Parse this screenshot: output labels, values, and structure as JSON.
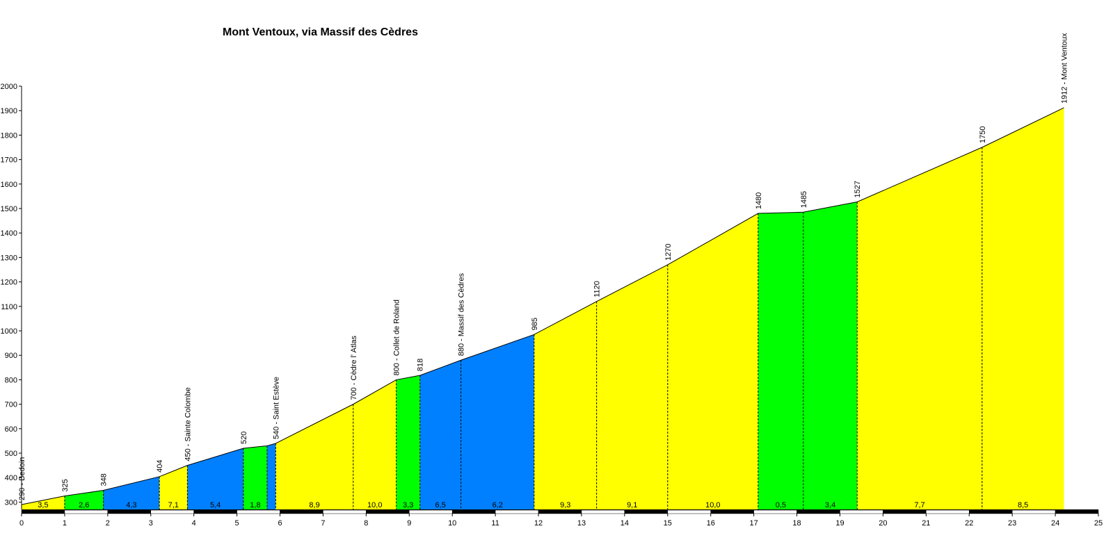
{
  "chart_data": {
    "type": "area",
    "title": "Mont Ventoux, via Massif des Cèdres",
    "xlabel": "",
    "ylabel": "",
    "xlim": [
      0,
      25
    ],
    "ylim": [
      270,
      2000
    ],
    "x_ticks": [
      0,
      1,
      2,
      3,
      4,
      5,
      6,
      7,
      8,
      9,
      10,
      11,
      12,
      13,
      14,
      15,
      16,
      17,
      18,
      19,
      20,
      21,
      22,
      23,
      24,
      25
    ],
    "y_ticks": [
      300,
      400,
      500,
      600,
      700,
      800,
      900,
      1000,
      1100,
      1200,
      1300,
      1400,
      1500,
      1600,
      1700,
      1800,
      1900,
      2000
    ],
    "grid": false,
    "colors": {
      "yellow": "#ffff00",
      "green": "#00ff00",
      "blue": "#0080ff"
    },
    "profile": [
      {
        "x": 0.0,
        "y": 290,
        "label": "290 - Bedoin"
      },
      {
        "x": 1.0,
        "y": 325,
        "label": "325"
      },
      {
        "x": 1.9,
        "y": 348,
        "label": "348"
      },
      {
        "x": 3.2,
        "y": 404,
        "label": "404"
      },
      {
        "x": 3.85,
        "y": 450,
        "label": "450 - Sainte Colombe"
      },
      {
        "x": 5.15,
        "y": 520,
        "label": "520"
      },
      {
        "x": 5.7,
        "y": 530,
        "label": ""
      },
      {
        "x": 5.9,
        "y": 540,
        "label": "540 - Saint Estève"
      },
      {
        "x": 7.7,
        "y": 700,
        "label": "700 - Cèdre l' Atlas"
      },
      {
        "x": 8.7,
        "y": 800,
        "label": "800 - Collet de Roland"
      },
      {
        "x": 9.25,
        "y": 818,
        "label": "818"
      },
      {
        "x": 10.2,
        "y": 880,
        "label": "880 - Massif des Cèdres"
      },
      {
        "x": 11.9,
        "y": 985,
        "label": "985"
      },
      {
        "x": 13.35,
        "y": 1120,
        "label": "1120"
      },
      {
        "x": 15.0,
        "y": 1270,
        "label": "1270"
      },
      {
        "x": 17.1,
        "y": 1480,
        "label": "1480"
      },
      {
        "x": 18.15,
        "y": 1485,
        "label": "1485"
      },
      {
        "x": 19.4,
        "y": 1527,
        "label": "1527"
      },
      {
        "x": 22.3,
        "y": 1750,
        "label": "1750"
      },
      {
        "x": 24.2,
        "y": 1912,
        "label": "1912 - Mont Ventoux"
      }
    ],
    "segments": [
      {
        "gradient": "3,5",
        "color": "yellow"
      },
      {
        "gradient": "2,6",
        "color": "green"
      },
      {
        "gradient": "4,3",
        "color": "blue"
      },
      {
        "gradient": "7,1",
        "color": "yellow"
      },
      {
        "gradient": "5,4",
        "color": "blue"
      },
      {
        "gradient": "1,8",
        "color": "green"
      },
      {
        "gradient": "",
        "color": "blue"
      },
      {
        "gradient": "8,9",
        "color": "yellow"
      },
      {
        "gradient": "10,0",
        "color": "yellow"
      },
      {
        "gradient": "3,3",
        "color": "green"
      },
      {
        "gradient": "6,5",
        "color": "blue"
      },
      {
        "gradient": "6,2",
        "color": "blue"
      },
      {
        "gradient": "9,3",
        "color": "yellow"
      },
      {
        "gradient": "9,1",
        "color": "yellow"
      },
      {
        "gradient": "10,0",
        "color": "yellow"
      },
      {
        "gradient": "0,5",
        "color": "green"
      },
      {
        "gradient": "3,4",
        "color": "green"
      },
      {
        "gradient": "7,7",
        "color": "yellow"
      },
      {
        "gradient": "8,5",
        "color": "yellow"
      }
    ]
  }
}
